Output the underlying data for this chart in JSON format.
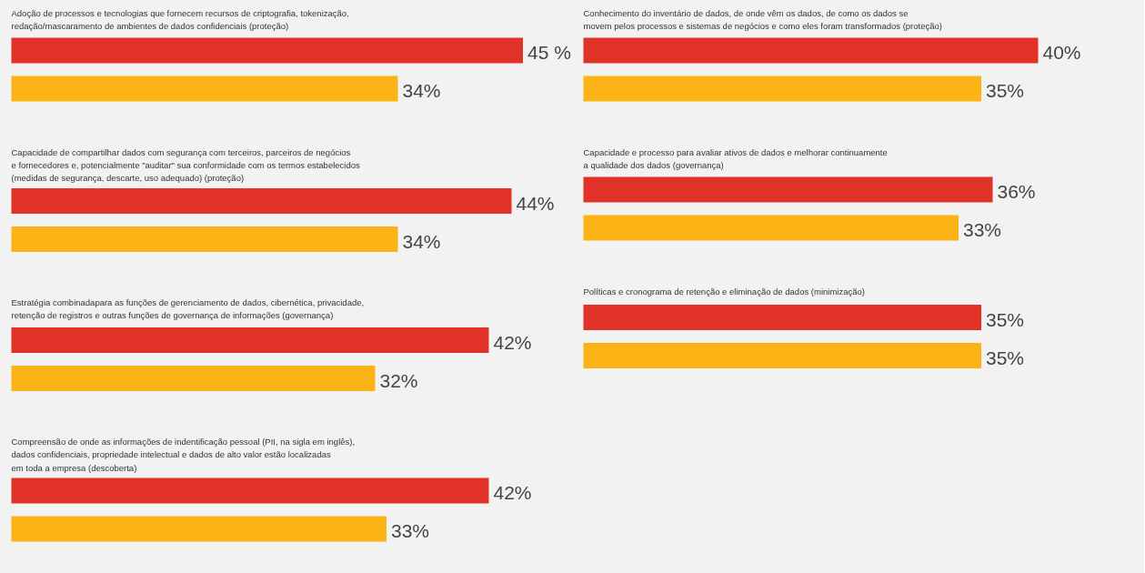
{
  "chart_data": [
    {
      "type": "bar",
      "orientation": "horizontal",
      "categories": [
        "Adoção de processos e tecnologias que fornecem recursos de criptografia, tokenização,\nredação/mascaramento de ambientes de dados confidenciais (proteção)",
        "Capacidade de compartilhar dados com segurança com terceiros, parceiros de negócios\ne fornecedores e, potencialmente \"auditar\" sua conformidade com os termos estabelecidos\n(medidas de segurança, descarte, uso adequado) (proteção)",
        "Estratégia combinadapara as funções de gerenciamento de dados, cibernética, privacidade,\nretenção de registros e outras funções de governança de informações (governança)",
        "Compreensão de onde as informações de indentificação pessoal (PII, na sigla em inglês),\ndados confidenciais, propriedade intelectual e dados de alto valor estão localizadas\nem toda a empresa (descoberta)"
      ],
      "series": [
        {
          "color": "#e03226",
          "values": [
            45,
            44,
            42,
            42
          ],
          "value_labels": [
            "45 %",
            "44%",
            "42%",
            "42%"
          ]
        },
        {
          "color": "#fbb316",
          "values": [
            34,
            34,
            32,
            33
          ],
          "value_labels": [
            "34%",
            "34%",
            "32%",
            "33%"
          ]
        }
      ]
    },
    {
      "type": "bar",
      "orientation": "horizontal",
      "categories": [
        "Conhecimento do inventário de dados, de onde vêm os dados, de como os dados se\nmovem pelos processos e sistemas de negócios e como eles foram transformados (proteção)",
        "Capacidade e processo para avaliar ativos de dados e melhorar continuamente\na qualidade dos dados (governança)",
        "Políticas e cronograma de retenção e eliminação de dados (minimização)"
      ],
      "series": [
        {
          "color": "#e03226",
          "values": [
            40,
            36,
            35
          ],
          "value_labels": [
            "40%",
            "36%",
            "35%"
          ]
        },
        {
          "color": "#fbb316",
          "values": [
            35,
            33,
            35
          ],
          "value_labels": [
            "35%",
            "33%",
            "35%"
          ]
        }
      ]
    }
  ]
}
